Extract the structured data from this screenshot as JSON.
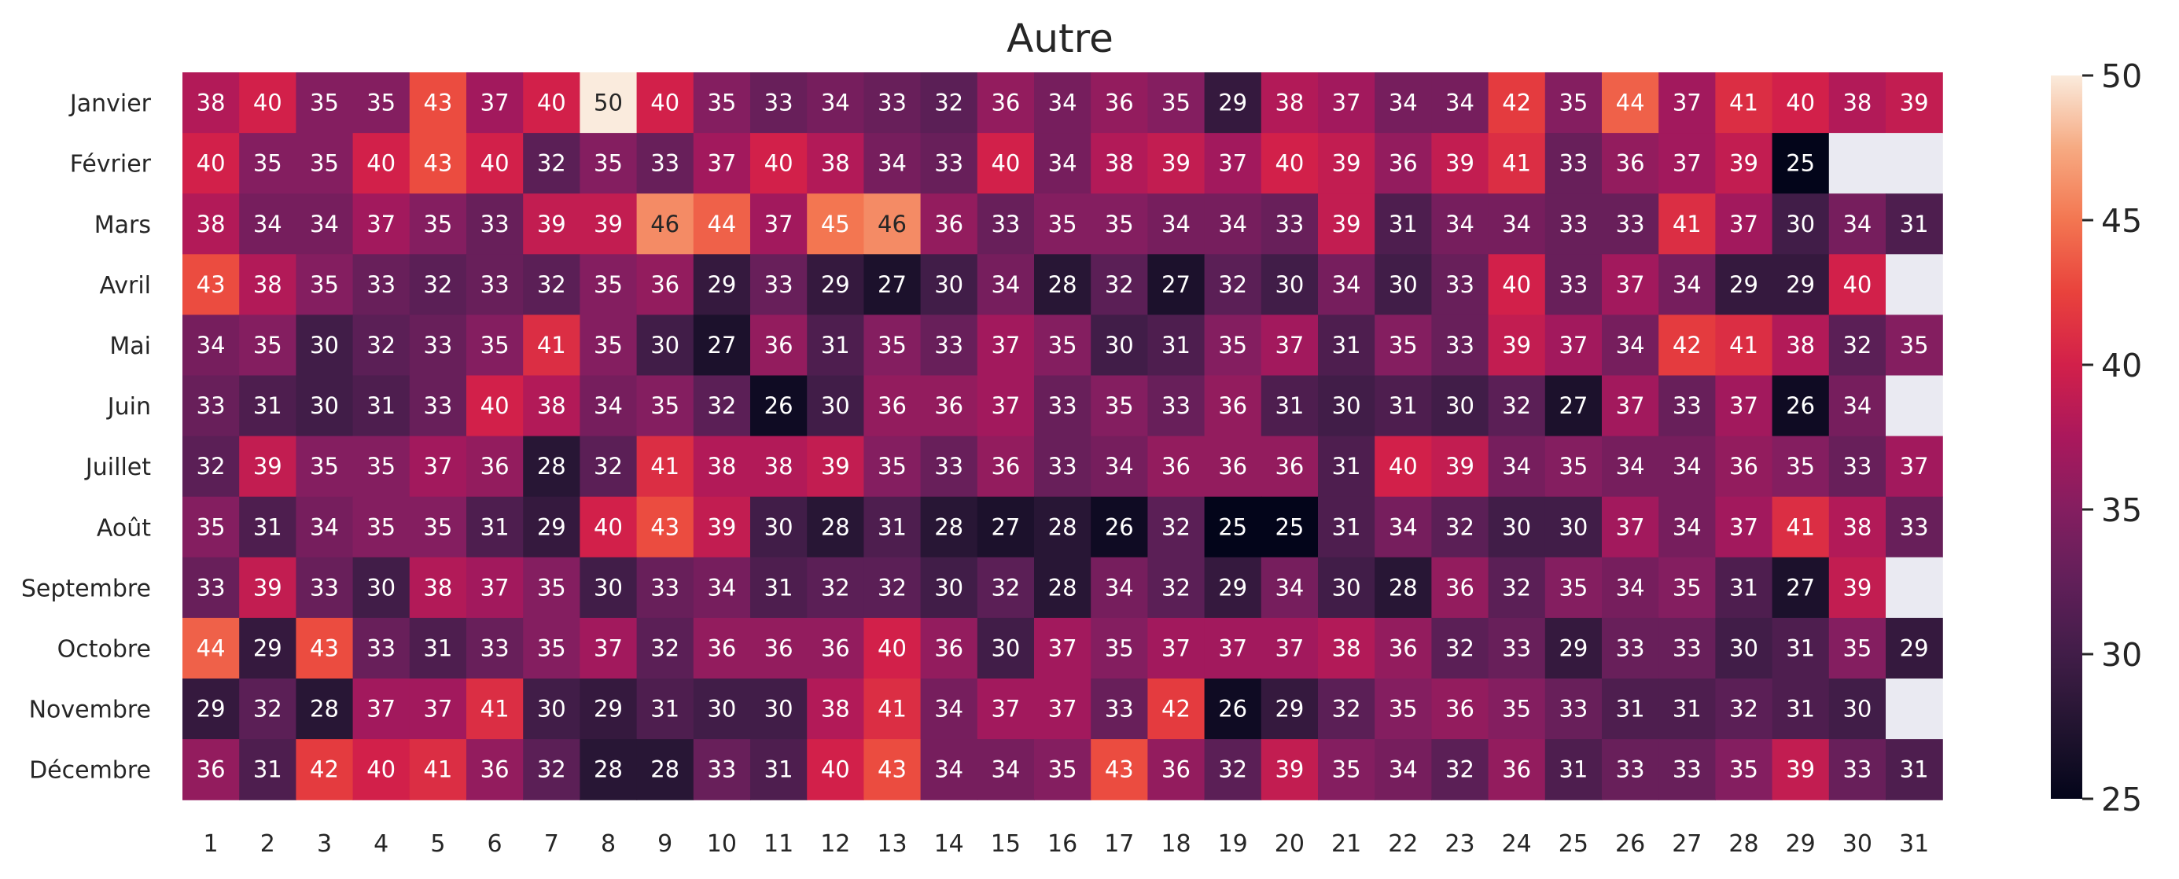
{
  "chart_data": {
    "type": "heatmap",
    "title": "Autre",
    "xlabel": "",
    "ylabel": "",
    "x_categories": [
      "1",
      "2",
      "3",
      "4",
      "5",
      "6",
      "7",
      "8",
      "9",
      "10",
      "11",
      "12",
      "13",
      "14",
      "15",
      "16",
      "17",
      "18",
      "19",
      "20",
      "21",
      "22",
      "23",
      "24",
      "25",
      "26",
      "27",
      "28",
      "29",
      "30",
      "31"
    ],
    "y_categories": [
      "Janvier",
      "Février",
      "Mars",
      "Avril",
      "Mai",
      "Juin",
      "Juillet",
      "Août",
      "Septembre",
      "Octobre",
      "Novembre",
      "Décembre"
    ],
    "values": [
      [
        38,
        40,
        35,
        35,
        43,
        37,
        40,
        50,
        40,
        35,
        33,
        34,
        33,
        32,
        36,
        34,
        36,
        35,
        29,
        38,
        37,
        34,
        34,
        42,
        35,
        44,
        37,
        41,
        40,
        38,
        39
      ],
      [
        40,
        35,
        35,
        40,
        43,
        40,
        32,
        35,
        33,
        37,
        40,
        38,
        34,
        33,
        40,
        34,
        38,
        39,
        37,
        40,
        39,
        36,
        39,
        41,
        33,
        36,
        37,
        39,
        25,
        null,
        null
      ],
      [
        38,
        34,
        34,
        37,
        35,
        33,
        39,
        39,
        46,
        44,
        37,
        45,
        46,
        36,
        33,
        35,
        35,
        34,
        34,
        33,
        39,
        31,
        34,
        34,
        33,
        33,
        41,
        37,
        30,
        34,
        31
      ],
      [
        43,
        38,
        35,
        33,
        32,
        33,
        32,
        35,
        36,
        29,
        33,
        29,
        27,
        30,
        34,
        28,
        32,
        27,
        32,
        30,
        34,
        30,
        33,
        40,
        33,
        37,
        34,
        29,
        29,
        40,
        null
      ],
      [
        34,
        35,
        30,
        32,
        33,
        35,
        41,
        35,
        30,
        27,
        36,
        31,
        35,
        33,
        37,
        35,
        30,
        31,
        35,
        37,
        31,
        35,
        33,
        39,
        37,
        34,
        42,
        41,
        38,
        32,
        35
      ],
      [
        33,
        31,
        30,
        31,
        33,
        40,
        38,
        34,
        35,
        32,
        26,
        30,
        36,
        36,
        37,
        33,
        35,
        33,
        36,
        31,
        30,
        31,
        30,
        32,
        27,
        37,
        33,
        37,
        26,
        34,
        null
      ],
      [
        32,
        39,
        35,
        35,
        37,
        36,
        28,
        32,
        41,
        38,
        38,
        39,
        35,
        33,
        36,
        33,
        34,
        36,
        36,
        36,
        31,
        40,
        39,
        34,
        35,
        34,
        34,
        36,
        35,
        33,
        37
      ],
      [
        35,
        31,
        34,
        35,
        35,
        31,
        29,
        40,
        43,
        39,
        30,
        28,
        31,
        28,
        27,
        28,
        26,
        32,
        25,
        25,
        31,
        34,
        32,
        30,
        30,
        37,
        34,
        37,
        41,
        38,
        33
      ],
      [
        33,
        39,
        33,
        30,
        38,
        37,
        35,
        30,
        33,
        34,
        31,
        32,
        32,
        30,
        32,
        28,
        34,
        32,
        29,
        34,
        30,
        28,
        36,
        32,
        35,
        34,
        35,
        31,
        27,
        39,
        null
      ],
      [
        44,
        29,
        43,
        33,
        31,
        33,
        35,
        37,
        32,
        36,
        36,
        36,
        40,
        36,
        30,
        37,
        35,
        37,
        37,
        37,
        38,
        36,
        32,
        33,
        29,
        33,
        33,
        30,
        31,
        35,
        29
      ],
      [
        29,
        32,
        28,
        37,
        37,
        41,
        30,
        29,
        31,
        30,
        30,
        38,
        41,
        34,
        37,
        37,
        33,
        42,
        26,
        29,
        32,
        35,
        36,
        35,
        33,
        31,
        31,
        32,
        31,
        30,
        null
      ],
      [
        36,
        31,
        42,
        40,
        41,
        36,
        32,
        28,
        28,
        33,
        31,
        40,
        43,
        34,
        34,
        35,
        43,
        36,
        32,
        39,
        35,
        34,
        32,
        36,
        31,
        33,
        33,
        35,
        39,
        33,
        31
      ]
    ],
    "vmin": 25,
    "vmax": 50,
    "colormap": "rocket",
    "missing_color": "#eaeaf2",
    "colorbar_ticks": [
      25,
      30,
      35,
      40,
      45,
      50
    ],
    "annotations": true,
    "grid": false
  }
}
